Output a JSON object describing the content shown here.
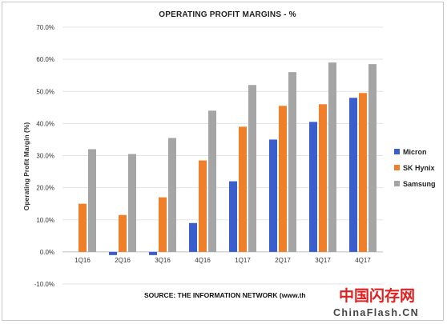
{
  "chart_data": {
    "type": "bar",
    "title": "OPERATING PROFIT MARGINS - %",
    "ylabel": "Operating Profit Margin (%)",
    "xlabel": "",
    "categories": [
      "1Q16",
      "2Q16",
      "3Q16",
      "4Q16",
      "1Q17",
      "2Q17",
      "3Q17",
      "4Q17"
    ],
    "ylim": [
      -10,
      70
    ],
    "yticks": [
      "-10.0%",
      "0.0%",
      "10.0%",
      "20.0%",
      "30.0%",
      "40.0%",
      "50.0%",
      "60.0%",
      "70.0%"
    ],
    "grid": true,
    "legend_position": "right",
    "series": [
      {
        "name": "Micron",
        "color": "#3a5fcd",
        "values": [
          0,
          -1,
          -1,
          9,
          22,
          35,
          40.5,
          48
        ]
      },
      {
        "name": "SK Hynix",
        "color": "#f07f2a",
        "values": [
          15,
          11.5,
          17,
          28.5,
          39,
          45.5,
          46,
          49.5
        ]
      },
      {
        "name": "Samsung",
        "color": "#a5a5a5",
        "values": [
          32,
          30.5,
          35.5,
          44,
          52,
          56,
          59,
          58.5
        ]
      }
    ]
  },
  "source_text": "SOURCE: THE INFORMATION NETWORK (www.th",
  "watermark": {
    "cn": "中国闪存网",
    "en": "ChinaFlash.CN"
  }
}
